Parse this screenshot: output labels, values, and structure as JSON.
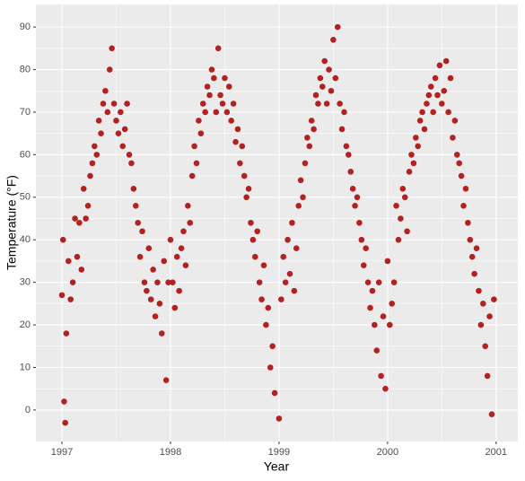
{
  "chart_data": {
    "type": "scatter",
    "x_label": "Year",
    "y_label": "Temperature (°F)",
    "color": "#b22222",
    "grid": true,
    "xlim": [
      1996.76,
      2001.2
    ],
    "ylim": [
      -7.4,
      95.3
    ],
    "xticks": [
      1997,
      1998,
      1999,
      2000,
      2001
    ],
    "yticks": [
      0,
      10,
      20,
      30,
      40,
      50,
      60,
      70,
      80,
      90
    ],
    "x": [
      1997.0,
      1997.01,
      1997.02,
      1997.03,
      1997.04,
      1997.06,
      1997.08,
      1997.1,
      1997.12,
      1997.14,
      1997.16,
      1997.18,
      1997.2,
      1997.22,
      1997.24,
      1997.26,
      1997.28,
      1997.3,
      1997.32,
      1997.34,
      1997.36,
      1997.38,
      1997.4,
      1997.42,
      1997.44,
      1997.46,
      1997.48,
      1997.5,
      1997.52,
      1997.54,
      1997.56,
      1997.58,
      1997.6,
      1997.62,
      1997.64,
      1997.66,
      1997.68,
      1997.7,
      1997.72,
      1997.74,
      1997.76,
      1997.78,
      1997.8,
      1997.82,
      1997.84,
      1997.86,
      1997.88,
      1997.9,
      1997.92,
      1997.94,
      1997.96,
      1997.98,
      1998.0,
      1998.02,
      1998.04,
      1998.06,
      1998.08,
      1998.1,
      1998.12,
      1998.14,
      1998.16,
      1998.18,
      1998.2,
      1998.22,
      1998.24,
      1998.26,
      1998.28,
      1998.3,
      1998.32,
      1998.34,
      1998.36,
      1998.38,
      1998.4,
      1998.42,
      1998.44,
      1998.46,
      1998.48,
      1998.5,
      1998.52,
      1998.54,
      1998.56,
      1998.58,
      1998.6,
      1998.62,
      1998.64,
      1998.66,
      1998.68,
      1998.7,
      1998.72,
      1998.74,
      1998.76,
      1998.78,
      1998.8,
      1998.82,
      1998.84,
      1998.86,
      1998.88,
      1998.9,
      1998.92,
      1998.94,
      1998.96,
      1999.0,
      1999.02,
      1999.04,
      1999.06,
      1999.08,
      1999.1,
      1999.12,
      1999.14,
      1999.16,
      1999.18,
      1999.2,
      1999.22,
      1999.24,
      1999.26,
      1999.28,
      1999.3,
      1999.32,
      1999.34,
      1999.36,
      1999.38,
      1999.4,
      1999.42,
      1999.44,
      1999.46,
      1999.48,
      1999.5,
      1999.52,
      1999.54,
      1999.56,
      1999.58,
      1999.6,
      1999.62,
      1999.64,
      1999.66,
      1999.68,
      1999.7,
      1999.72,
      1999.74,
      1999.76,
      1999.78,
      1999.8,
      1999.82,
      1999.84,
      1999.86,
      1999.88,
      1999.9,
      1999.92,
      1999.94,
      1999.96,
      1999.98,
      2000.0,
      2000.02,
      2000.04,
      2000.06,
      2000.08,
      2000.1,
      2000.12,
      2000.14,
      2000.16,
      2000.18,
      2000.2,
      2000.22,
      2000.24,
      2000.26,
      2000.28,
      2000.3,
      2000.32,
      2000.34,
      2000.36,
      2000.38,
      2000.4,
      2000.42,
      2000.44,
      2000.46,
      2000.48,
      2000.5,
      2000.52,
      2000.54,
      2000.56,
      2000.58,
      2000.6,
      2000.62,
      2000.64,
      2000.66,
      2000.68,
      2000.7,
      2000.72,
      2000.74,
      2000.76,
      2000.78,
      2000.8,
      2000.82,
      2000.84,
      2000.86,
      2000.88,
      2000.9,
      2000.92,
      2000.94,
      2000.96,
      2000.98
    ],
    "values": [
      27,
      40,
      2,
      -3,
      18,
      35,
      26,
      30,
      45,
      36,
      44,
      33,
      52,
      45,
      48,
      55,
      58,
      62,
      60,
      68,
      65,
      72,
      75,
      70,
      80,
      85,
      72,
      68,
      65,
      70,
      62,
      66,
      72,
      60,
      58,
      52,
      48,
      44,
      36,
      42,
      30,
      28,
      38,
      26,
      33,
      22,
      30,
      25,
      18,
      35,
      7,
      30,
      40,
      30,
      24,
      36,
      28,
      38,
      42,
      34,
      48,
      44,
      55,
      62,
      58,
      68,
      65,
      72,
      70,
      76,
      74,
      80,
      78,
      70,
      85,
      74,
      72,
      78,
      70,
      76,
      68,
      72,
      63,
      66,
      58,
      62,
      55,
      50,
      52,
      44,
      40,
      36,
      42,
      30,
      26,
      34,
      20,
      24,
      10,
      15,
      4,
      -2,
      26,
      36,
      30,
      40,
      32,
      44,
      28,
      38,
      48,
      54,
      50,
      58,
      64,
      62,
      68,
      66,
      74,
      72,
      78,
      76,
      82,
      72,
      80,
      75,
      87,
      78,
      90,
      72,
      66,
      70,
      62,
      60,
      56,
      52,
      48,
      50,
      44,
      40,
      34,
      38,
      30,
      24,
      28,
      20,
      14,
      30,
      8,
      22,
      5,
      35,
      20,
      25,
      30,
      48,
      40,
      45,
      52,
      50,
      42,
      56,
      60,
      58,
      64,
      62,
      68,
      70,
      66,
      72,
      74,
      76,
      70,
      78,
      74,
      81,
      72,
      75,
      82,
      70,
      78,
      64,
      68,
      60,
      58,
      55,
      48,
      52,
      44,
      40,
      36,
      32,
      38,
      28,
      20,
      25,
      15,
      8,
      22,
      -1,
      26
    ]
  }
}
